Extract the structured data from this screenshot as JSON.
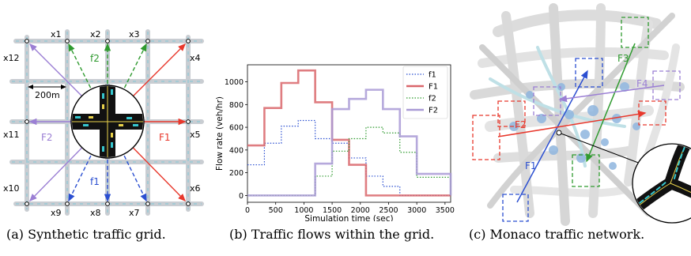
{
  "captions": {
    "a": "(a) Synthetic traffic grid.",
    "b": "(b) Traffic flows within the grid.",
    "c": "(c) Monaco traffic network."
  },
  "grid": {
    "nodes_top": [
      "x1",
      "x2",
      "x3"
    ],
    "nodes_right": [
      "x4",
      "x5",
      "x6"
    ],
    "nodes_bottom": [
      "x9",
      "x8",
      "x7"
    ],
    "nodes_left": [
      "x12",
      "x11",
      "x10"
    ],
    "flow_labels": {
      "f2": "f2",
      "F1": "F1",
      "F2": "F2",
      "f1": "f1"
    },
    "scale_label": "200m",
    "colors": {
      "F1": "#e8382c",
      "F2": "#9b7fd4",
      "f1": "#2b4fd1",
      "f2": "#2f9a2f"
    }
  },
  "chart_data": {
    "type": "line",
    "xlabel": "Simulation time (sec)",
    "ylabel": "Flow rate (veh/hr)",
    "xlim": [
      0,
      3600
    ],
    "ylim": [
      -60,
      1150
    ],
    "xticks": [
      0,
      500,
      1000,
      1500,
      2000,
      2500,
      3000,
      3500
    ],
    "yticks": [
      0,
      200,
      400,
      600,
      800,
      1000
    ],
    "legend_position": "top-right",
    "series": [
      {
        "name": "f1",
        "style": "dotted",
        "color": "#2b4fd1",
        "x": [
          0,
          300,
          600,
          900,
          1200,
          1500,
          1800,
          2100,
          2400,
          2700,
          3000,
          3600
        ],
        "y": [
          270,
          460,
          610,
          660,
          500,
          460,
          330,
          170,
          80,
          0,
          0,
          0
        ]
      },
      {
        "name": "F1",
        "style": "solid",
        "color": "#d9666b",
        "x": [
          0,
          300,
          600,
          900,
          1200,
          1500,
          1800,
          2100,
          2400,
          2700,
          3000,
          3600
        ],
        "y": [
          440,
          770,
          990,
          1100,
          820,
          490,
          270,
          0,
          0,
          0,
          0,
          0
        ]
      },
      {
        "name": "f2",
        "style": "dotted",
        "color": "#2f9a2f",
        "x": [
          0,
          300,
          600,
          900,
          1200,
          1500,
          1800,
          2100,
          2400,
          2700,
          3000,
          3600
        ],
        "y": [
          0,
          0,
          0,
          0,
          170,
          390,
          500,
          600,
          550,
          380,
          160,
          0
        ]
      },
      {
        "name": "F2",
        "style": "solid",
        "color": "#a99ad6",
        "x": [
          0,
          300,
          600,
          900,
          1200,
          1500,
          1800,
          2100,
          2400,
          2700,
          3000,
          3600
        ],
        "y": [
          0,
          0,
          0,
          0,
          280,
          760,
          850,
          930,
          760,
          520,
          190,
          0
        ]
      }
    ]
  },
  "monaco": {
    "flow_labels": {
      "F1": "F1",
      "F2": "F2",
      "F3": "F3",
      "F4": "F4"
    },
    "colors": {
      "F1": "#2b4fd1",
      "F2": "#e8382c",
      "F3": "#2f9a2f",
      "F4": "#9b7fd4"
    }
  }
}
